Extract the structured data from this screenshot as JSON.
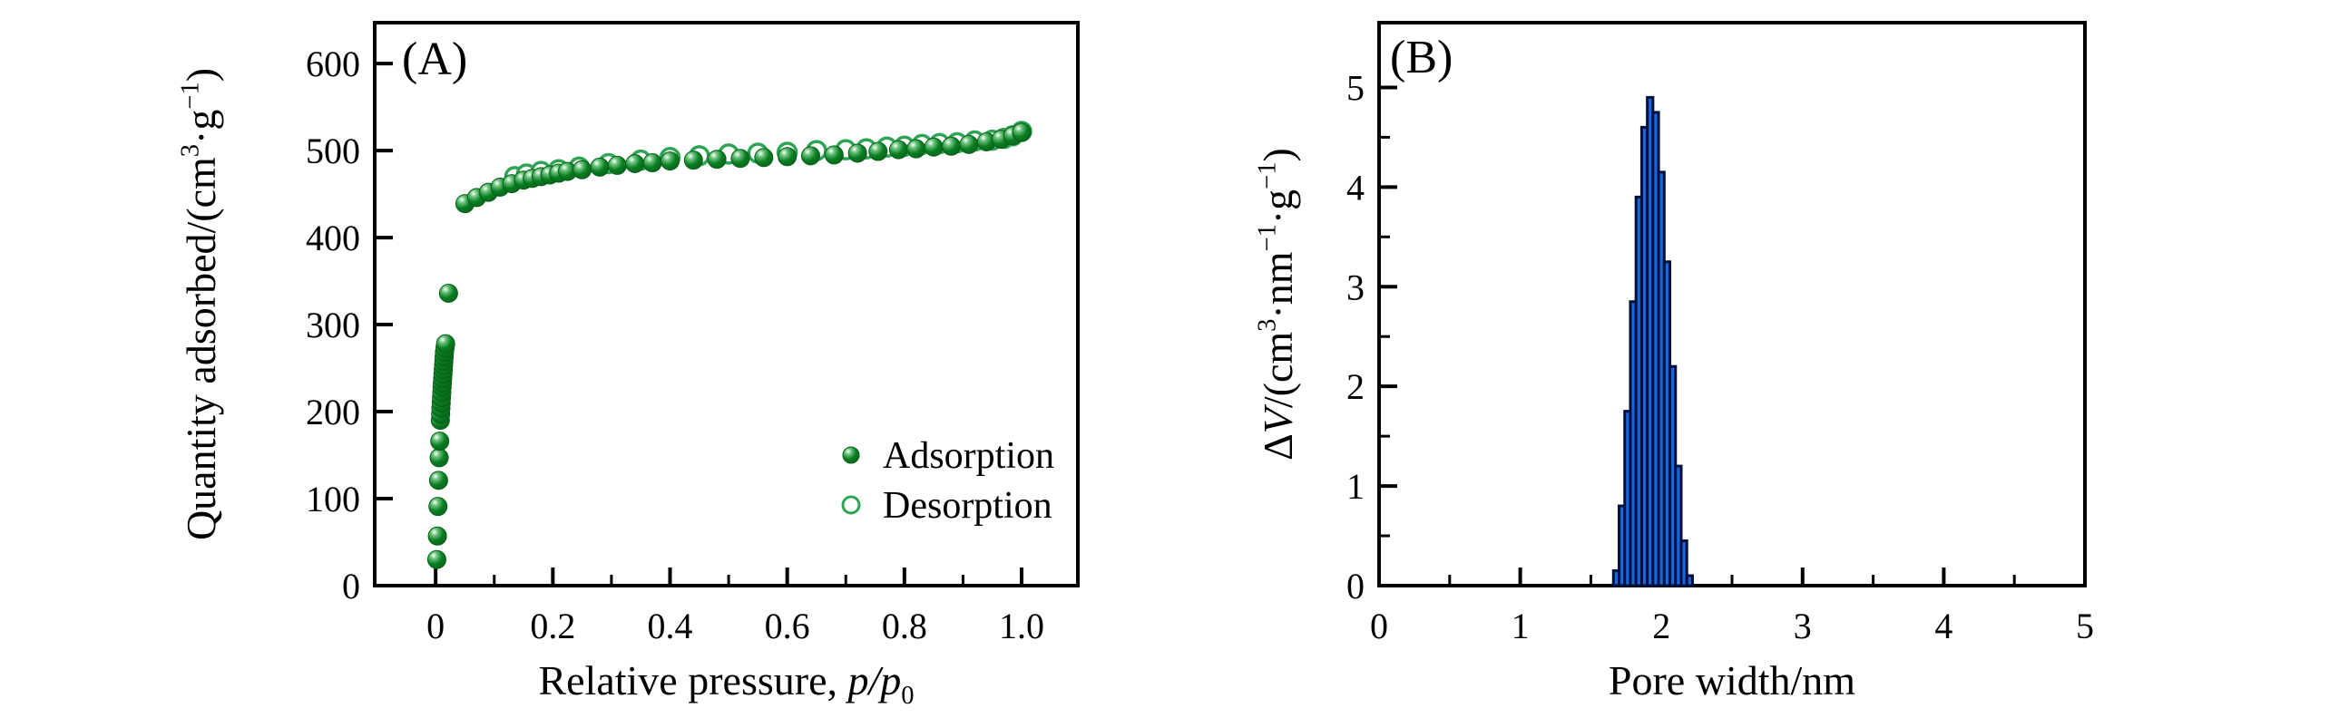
{
  "figure": {
    "background": "#ffffff",
    "axis_color": "#000000",
    "panels": [
      {
        "panel_letter": "(A)",
        "xlabel_plain": "Relative pressure, p/p0",
        "ylabel_plain": "Quantity adsorbed/(cm3·g-1)"
      },
      {
        "panel_letter": "(B)",
        "xlabel_plain": "Pore width/nm",
        "ylabel_plain": "ΔV/(cm3·nm-1·g-1)"
      }
    ]
  },
  "chart_data": [
    {
      "type": "scatter",
      "panel_letter": "(A)",
      "title": "",
      "xlabel_segments": [
        {
          "t": "Relative pressure, "
        },
        {
          "t": "p",
          "s": "i"
        },
        {
          "t": "/",
          "s": "i"
        },
        {
          "t": "p",
          "s": "i"
        },
        {
          "t": "0",
          "s": "sub"
        }
      ],
      "ylabel_segments": [
        {
          "t": "Quantity adsorbed/(cm"
        },
        {
          "t": "3",
          "s": "sup"
        },
        {
          "t": "·g"
        },
        {
          "t": "−1",
          "s": "sup"
        },
        {
          "t": ")"
        }
      ],
      "xlim": [
        -0.104,
        1.096
      ],
      "ylim": [
        0,
        647
      ],
      "xticks": [
        0,
        0.2,
        0.4,
        0.6,
        0.8,
        1.0
      ],
      "xtick_labels": [
        "0",
        "0.2",
        "0.4",
        "0.6",
        "0.8",
        "1.0"
      ],
      "xminors": [
        0.1,
        0.3,
        0.5,
        0.7,
        0.9
      ],
      "yticks": [
        0,
        100,
        200,
        300,
        400,
        500,
        600
      ],
      "ytick_labels": [
        "0",
        "100",
        "200",
        "300",
        "400",
        "500",
        "600"
      ],
      "yminors": [],
      "grid": false,
      "legend_position": "inside lower right",
      "legend": [
        {
          "label": "Adsorption",
          "marker": "filled"
        },
        {
          "label": "Desorption",
          "marker": "open"
        }
      ],
      "marker_colors": {
        "filled_main": "#0a7e22",
        "filled_dark": "#066018",
        "filled_highlight": "#ffffff",
        "open_stroke": "#2fa455"
      },
      "series": [
        {
          "name": "Desorption",
          "marker": "open",
          "points": [
            [
              0.135,
              470
            ],
            [
              0.155,
              473
            ],
            [
              0.18,
              476
            ],
            [
              0.21,
              478
            ],
            [
              0.245,
              481
            ],
            [
              0.295,
              485
            ],
            [
              0.35,
              489
            ],
            [
              0.4,
              492
            ],
            [
              0.45,
              494
            ],
            [
              0.5,
              496
            ],
            [
              0.55,
              497
            ],
            [
              0.6,
              498
            ],
            [
              0.65,
              500
            ],
            [
              0.7,
              501
            ],
            [
              0.735,
              502
            ],
            [
              0.77,
              504
            ],
            [
              0.8,
              505
            ],
            [
              0.83,
              507
            ],
            [
              0.86,
              508
            ],
            [
              0.89,
              509
            ],
            [
              0.92,
              511
            ],
            [
              0.95,
              512
            ],
            [
              0.97,
              514
            ],
            [
              0.985,
              517
            ],
            [
              1.0,
              522
            ]
          ]
        },
        {
          "name": "Adsorption",
          "marker": "filled",
          "points": [
            [
              0.002,
              30
            ],
            [
              0.003,
              57
            ],
            [
              0.004,
              91
            ],
            [
              0.005,
              121
            ],
            [
              0.006,
              147
            ],
            [
              0.007,
              166
            ],
            [
              0.008,
              190
            ],
            [
              0.0085,
              197
            ],
            [
              0.009,
              204
            ],
            [
              0.0095,
              210
            ],
            [
              0.01,
              216
            ],
            [
              0.0105,
              222
            ],
            [
              0.011,
              228
            ],
            [
              0.0115,
              233
            ],
            [
              0.012,
              238
            ],
            [
              0.0125,
              243
            ],
            [
              0.013,
              248
            ],
            [
              0.0135,
              253
            ],
            [
              0.014,
              258
            ],
            [
              0.0145,
              263
            ],
            [
              0.015,
              268
            ],
            [
              0.016,
              273
            ],
            [
              0.017,
              278
            ],
            [
              0.022,
              336
            ],
            [
              0.05,
              439
            ],
            [
              0.07,
              446
            ],
            [
              0.09,
              452
            ],
            [
              0.11,
              458
            ],
            [
              0.13,
              462
            ],
            [
              0.15,
              466
            ],
            [
              0.165,
              468
            ],
            [
              0.18,
              470
            ],
            [
              0.195,
              472
            ],
            [
              0.21,
              474
            ],
            [
              0.225,
              476
            ],
            [
              0.25,
              478
            ],
            [
              0.28,
              481
            ],
            [
              0.31,
              483
            ],
            [
              0.34,
              485
            ],
            [
              0.37,
              486
            ],
            [
              0.4,
              488
            ],
            [
              0.44,
              489
            ],
            [
              0.48,
              490
            ],
            [
              0.52,
              491
            ],
            [
              0.56,
              492
            ],
            [
              0.6,
              493
            ],
            [
              0.64,
              494
            ],
            [
              0.68,
              495
            ],
            [
              0.72,
              497
            ],
            [
              0.755,
              499
            ],
            [
              0.79,
              501
            ],
            [
              0.82,
              502
            ],
            [
              0.85,
              504
            ],
            [
              0.88,
              505
            ],
            [
              0.91,
              507
            ],
            [
              0.94,
              510
            ],
            [
              0.965,
              513
            ],
            [
              0.985,
              517
            ],
            [
              1.0,
              521
            ]
          ]
        }
      ]
    },
    {
      "type": "bar",
      "panel_letter": "(B)",
      "title": "",
      "xlabel_segments": [
        {
          "t": "Pore width/nm"
        }
      ],
      "ylabel_segments": [
        {
          "t": "Δ"
        },
        {
          "t": "V",
          "s": "i"
        },
        {
          "t": "/(cm"
        },
        {
          "t": "3",
          "s": "sup"
        },
        {
          "t": "·nm"
        },
        {
          "t": "−1",
          "s": "sup"
        },
        {
          "t": "·g"
        },
        {
          "t": "−1",
          "s": "sup"
        },
        {
          "t": ")"
        }
      ],
      "xlim": [
        0,
        5
      ],
      "ylim": [
        0,
        5.65
      ],
      "xticks": [
        0,
        1,
        2,
        3,
        4,
        5
      ],
      "xtick_labels": [
        "0",
        "1",
        "2",
        "3",
        "4",
        "5"
      ],
      "xminors": [
        0.5,
        1.5,
        2.5,
        3.5,
        4.5
      ],
      "yticks": [
        0,
        1,
        2,
        3,
        4,
        5
      ],
      "ytick_labels": [
        "0",
        "1",
        "2",
        "3",
        "4",
        "5"
      ],
      "yminors": [
        0.5,
        1.5,
        2.5,
        3.5,
        4.5
      ],
      "grid": false,
      "bar_fill": "#1767e0",
      "bar_edge": "#01103a",
      "bar_width": 0.04,
      "bar_centers": [
        1.68,
        1.72,
        1.76,
        1.8,
        1.84,
        1.88,
        1.92,
        1.96,
        2.0,
        2.04,
        2.08,
        2.12,
        2.16,
        2.2
      ],
      "bar_heights": [
        0.15,
        0.8,
        1.75,
        2.85,
        3.9,
        4.6,
        4.9,
        4.75,
        4.15,
        3.25,
        2.2,
        1.2,
        0.45,
        0.1
      ]
    }
  ]
}
